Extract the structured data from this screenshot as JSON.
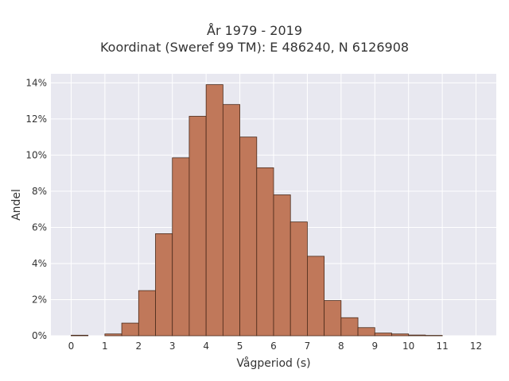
{
  "chart_data": {
    "type": "bar",
    "title": [
      "År 1979 - 2019",
      "Koordinat (Sweref 99 TM): E 486240, N 6126908"
    ],
    "xlabel": "Vågperiod (s)",
    "ylabel": "Andel",
    "xlim": [
      -0.6,
      12.6
    ],
    "ylim": [
      0,
      14.5
    ],
    "x_ticks": [
      0,
      1,
      2,
      3,
      4,
      5,
      6,
      7,
      8,
      9,
      10,
      11,
      12
    ],
    "y_ticks": [
      "0%",
      "2%",
      "4%",
      "6%",
      "8%",
      "10%",
      "12%",
      "14%"
    ],
    "y_tick_values": [
      0,
      2,
      4,
      6,
      8,
      10,
      12,
      14
    ],
    "bin_width": 0.5,
    "bins": [
      {
        "start": 0.0,
        "value": 0.03
      },
      {
        "start": 1.0,
        "value": 0.1
      },
      {
        "start": 1.5,
        "value": 0.7
      },
      {
        "start": 2.0,
        "value": 2.5
      },
      {
        "start": 2.5,
        "value": 5.65
      },
      {
        "start": 3.0,
        "value": 9.85
      },
      {
        "start": 3.5,
        "value": 12.15
      },
      {
        "start": 4.0,
        "value": 13.9
      },
      {
        "start": 4.5,
        "value": 12.8
      },
      {
        "start": 5.0,
        "value": 11.0
      },
      {
        "start": 5.5,
        "value": 9.3
      },
      {
        "start": 6.0,
        "value": 7.8
      },
      {
        "start": 6.5,
        "value": 6.3
      },
      {
        "start": 7.0,
        "value": 4.4
      },
      {
        "start": 7.5,
        "value": 1.95
      },
      {
        "start": 8.0,
        "value": 1.0
      },
      {
        "start": 8.5,
        "value": 0.45
      },
      {
        "start": 9.0,
        "value": 0.15
      },
      {
        "start": 9.5,
        "value": 0.1
      },
      {
        "start": 10.0,
        "value": 0.04
      },
      {
        "start": 10.5,
        "value": 0.02
      }
    ],
    "grid": true,
    "colors": {
      "bar_fill": "#c0785a",
      "bar_stroke": "#4a2a1a",
      "plot_bg": "#e8e8f0",
      "grid": "#ffffff"
    }
  }
}
